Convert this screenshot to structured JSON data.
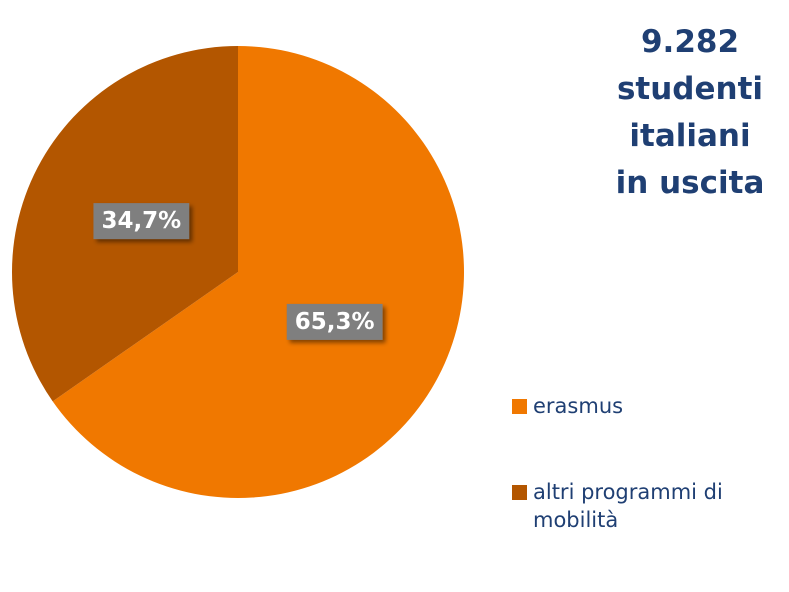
{
  "chart_data": {
    "type": "pie",
    "title": [
      "9.282",
      "studenti",
      "italiani",
      "in uscita"
    ],
    "categories": [
      "erasmus",
      "altri programmi di mobilità"
    ],
    "values": [
      65.3,
      34.7
    ],
    "value_labels": [
      "65,3%",
      "34,7%"
    ],
    "colors": [
      "#f07800",
      "#b35600"
    ],
    "legend": "right"
  }
}
